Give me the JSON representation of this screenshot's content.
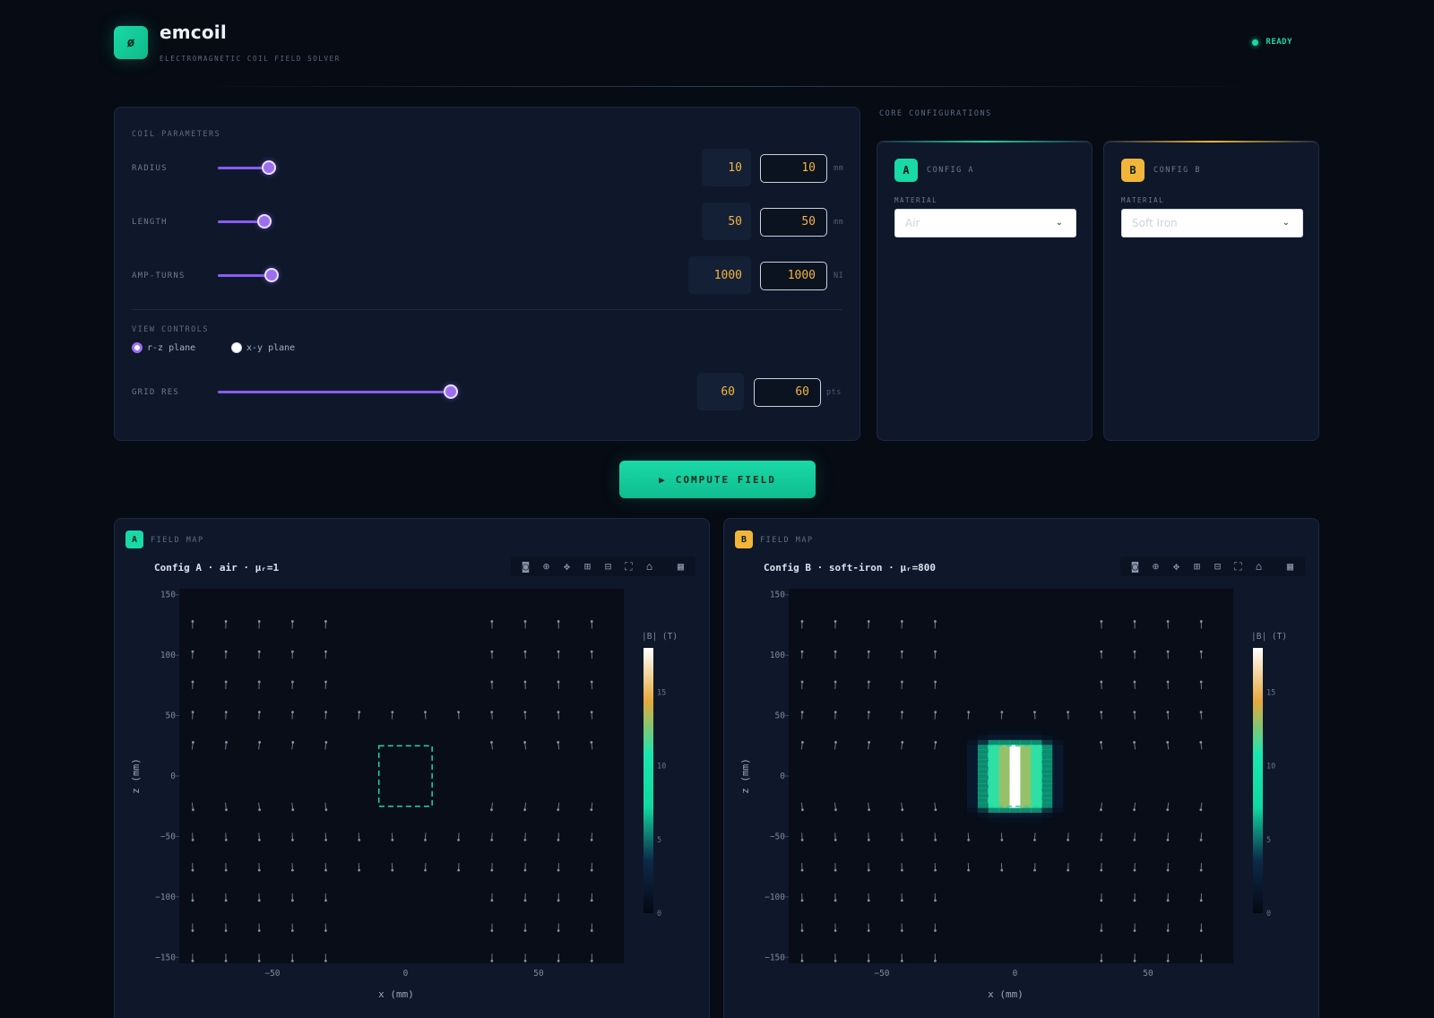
{
  "header": {
    "logo_glyph": "ø",
    "app_name": "emcoil",
    "subtitle": "ELECTROMAGNETIC COIL FIELD SOLVER",
    "status": "READY",
    "status_color": "#19d9a6"
  },
  "coil": {
    "section_label": "COIL PARAMETERS",
    "params": [
      {
        "label": "RADIUS",
        "value": "10",
        "input": "10",
        "unit": "mm",
        "fraction": 0.22
      },
      {
        "label": "LENGTH",
        "value": "50",
        "input": "50",
        "unit": "mm",
        "fraction": 0.2
      },
      {
        "label": "AMP-TURNS",
        "value": "1000",
        "input": "1000",
        "unit": "NI",
        "fraction": 0.23
      }
    ],
    "view_label": "VIEW CONTROLS",
    "planes": [
      {
        "label": "r-z plane",
        "selected": true
      },
      {
        "label": "x-y plane",
        "selected": false
      }
    ],
    "grid": {
      "label": "GRID RES",
      "value": "60",
      "input": "60",
      "unit": "pts",
      "fraction": 1.0
    }
  },
  "cores": {
    "section_label": "CORE CONFIGURATIONS",
    "configs": [
      {
        "badge": "A",
        "title": "CONFIG A",
        "material_label": "MATERIAL",
        "material": "Air",
        "color": "#19d9a6"
      },
      {
        "badge": "B",
        "title": "CONFIG B",
        "material_label": "MATERIAL",
        "material": "Soft Iron",
        "color": "#f2b53a"
      }
    ]
  },
  "compute_button": {
    "icon": "play-icon",
    "glyph": "▶",
    "label": "COMPUTE FIELD"
  },
  "modebar_icons": [
    "camera-icon",
    "zoom-icon",
    "pan-icon",
    "zoom-in-icon",
    "zoom-out-icon",
    "autoscale-icon",
    "reset-axes-icon",
    "plotly-logo-icon"
  ],
  "chart_data": [
    {
      "type": "heatmap",
      "badge": "A",
      "panel_label": "FIELD MAP",
      "title": "Config A · air · μᵣ=1",
      "xlabel": "x (mm)",
      "ylabel": "z (mm)",
      "xlim": [
        -85,
        82
      ],
      "ylim": [
        -155,
        155
      ],
      "xticks": [
        "−50",
        "0",
        "50"
      ],
      "xtick_values": [
        -50,
        0,
        50
      ],
      "yticks": [
        "150",
        "100",
        "50",
        "0",
        "−50",
        "−100",
        "−150"
      ],
      "ytick_values": [
        150,
        100,
        50,
        0,
        -50,
        -100,
        -150
      ],
      "colorbar": {
        "title": "|B| (T)",
        "ticks": [
          "15",
          "10",
          "5",
          "0"
        ],
        "tick_values": [
          15,
          10,
          5,
          0
        ],
        "range": [
          0,
          18
        ]
      },
      "coil_outline": {
        "x": [
          -10,
          10
        ],
        "z": [
          -25,
          25
        ]
      },
      "core_field_peak": 0,
      "colormap": [
        "#050912",
        "#0c2a4a",
        "#10d9a0",
        "#1ae6b0",
        "#e6a93a",
        "#ffffff"
      ]
    },
    {
      "type": "heatmap",
      "badge": "B",
      "panel_label": "FIELD MAP",
      "title": "Config B · soft-iron · μᵣ=800",
      "xlabel": "x (mm)",
      "ylabel": "z (mm)",
      "xlim": [
        -85,
        82
      ],
      "ylim": [
        -155,
        155
      ],
      "xticks": [
        "−50",
        "0",
        "50"
      ],
      "xtick_values": [
        -50,
        0,
        50
      ],
      "yticks": [
        "150",
        "100",
        "50",
        "0",
        "−50",
        "−100",
        "−150"
      ],
      "ytick_values": [
        150,
        100,
        50,
        0,
        -50,
        -100,
        -150
      ],
      "colorbar": {
        "title": "|B| (T)",
        "ticks": [
          "15",
          "10",
          "5",
          "0"
        ],
        "tick_values": [
          15,
          10,
          5,
          0
        ],
        "range": [
          0,
          18
        ]
      },
      "coil_outline": {
        "x": [
          -10,
          10
        ],
        "z": [
          -25,
          25
        ]
      },
      "core_field_peak": 18,
      "colormap": [
        "#050912",
        "#0c2a4a",
        "#10d9a0",
        "#1ae6b0",
        "#e6a93a",
        "#ffffff"
      ]
    }
  ]
}
